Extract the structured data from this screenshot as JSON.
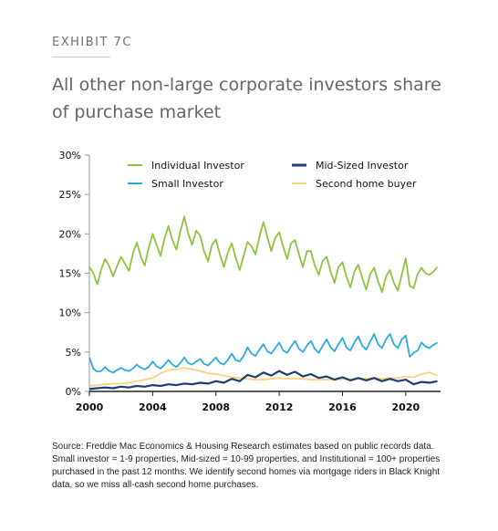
{
  "header": {
    "exhibit": "EXHIBIT 7C",
    "title": "All other non-large corporate investors share of purchase market"
  },
  "source": "Source: Freddie Mac Economics & Housing Research estimates based on public records data. Small investor = 1-9 properties, Mid-sized = 10-99 properties, and Institutional = 100+ properties purchased in the past 12 months. We identify second homes via mortgage riders in Black Knight data, so we miss all-cash second home purchases.",
  "colors": {
    "individual": "#8cc63f",
    "small": "#29abe2",
    "mid": "#1f3e74",
    "second": "#fbd17a",
    "axis": "#222222",
    "grid": "#9a9a9a"
  },
  "chart_data": {
    "type": "line",
    "xlim": [
      2000,
      2022.2
    ],
    "ylim": [
      0,
      30
    ],
    "x_ticks": [
      2000,
      2004,
      2008,
      2012,
      2016,
      2020
    ],
    "x_tick_labels": [
      "2000",
      "2004",
      "2008",
      "2012",
      "2016",
      "2020"
    ],
    "y_ticks": [
      0,
      5,
      10,
      15,
      20,
      25,
      30
    ],
    "y_tick_labels": [
      "0%",
      "5%",
      "10%",
      "15%",
      "20%",
      "25%",
      "30%"
    ],
    "grid": false,
    "legend_placement": "top",
    "series": [
      {
        "name": "Individual Investor",
        "color_key": "individual",
        "x": [
          2000.0,
          2000.25,
          2000.5,
          2000.75,
          2001.0,
          2001.25,
          2001.5,
          2001.75,
          2002.0,
          2002.25,
          2002.5,
          2002.75,
          2003.0,
          2003.25,
          2003.5,
          2003.75,
          2004.0,
          2004.25,
          2004.5,
          2004.75,
          2005.0,
          2005.25,
          2005.5,
          2005.75,
          2006.0,
          2006.25,
          2006.5,
          2006.75,
          2007.0,
          2007.25,
          2007.5,
          2007.75,
          2008.0,
          2008.25,
          2008.5,
          2008.75,
          2009.0,
          2009.25,
          2009.5,
          2009.75,
          2010.0,
          2010.25,
          2010.5,
          2010.75,
          2011.0,
          2011.25,
          2011.5,
          2011.75,
          2012.0,
          2012.25,
          2012.5,
          2012.75,
          2013.0,
          2013.25,
          2013.5,
          2013.75,
          2014.0,
          2014.25,
          2014.5,
          2014.75,
          2015.0,
          2015.25,
          2015.5,
          2015.75,
          2016.0,
          2016.25,
          2016.5,
          2016.75,
          2017.0,
          2017.25,
          2017.5,
          2017.75,
          2018.0,
          2018.25,
          2018.5,
          2018.75,
          2019.0,
          2019.25,
          2019.5,
          2019.75,
          2020.0,
          2020.25,
          2020.5,
          2020.75,
          2021.0,
          2021.25,
          2021.5,
          2021.75,
          2022.0
        ],
        "y": [
          15.8,
          15.0,
          13.6,
          15.5,
          16.8,
          15.9,
          14.6,
          15.9,
          17.1,
          16.2,
          15.3,
          17.5,
          18.9,
          17.1,
          16.0,
          18.2,
          20.0,
          18.6,
          17.2,
          19.4,
          21.0,
          19.2,
          18.0,
          20.3,
          22.2,
          20.0,
          18.6,
          20.4,
          19.8,
          17.8,
          16.5,
          18.6,
          19.3,
          17.4,
          15.8,
          17.6,
          18.8,
          17.0,
          15.4,
          17.2,
          19.0,
          18.4,
          17.4,
          19.6,
          21.5,
          19.6,
          17.8,
          19.5,
          20.2,
          18.4,
          16.8,
          18.8,
          19.2,
          17.4,
          15.8,
          17.8,
          17.8,
          16.0,
          14.8,
          16.6,
          17.1,
          15.2,
          13.8,
          15.8,
          16.4,
          14.6,
          13.2,
          15.2,
          16.1,
          14.4,
          12.9,
          14.9,
          15.7,
          14.0,
          12.6,
          14.6,
          15.4,
          13.8,
          12.8,
          14.8,
          16.9,
          13.4,
          13.1,
          14.9,
          15.7,
          15.0,
          14.8,
          15.2,
          15.8
        ]
      },
      {
        "name": "Small Investor",
        "color_key": "small",
        "x": [
          2000.0,
          2000.25,
          2000.5,
          2000.75,
          2001.0,
          2001.25,
          2001.5,
          2001.75,
          2002.0,
          2002.25,
          2002.5,
          2002.75,
          2003.0,
          2003.25,
          2003.5,
          2003.75,
          2004.0,
          2004.25,
          2004.5,
          2004.75,
          2005.0,
          2005.25,
          2005.5,
          2005.75,
          2006.0,
          2006.25,
          2006.5,
          2006.75,
          2007.0,
          2007.25,
          2007.5,
          2007.75,
          2008.0,
          2008.25,
          2008.5,
          2008.75,
          2009.0,
          2009.25,
          2009.5,
          2009.75,
          2010.0,
          2010.25,
          2010.5,
          2010.75,
          2011.0,
          2011.25,
          2011.5,
          2011.75,
          2012.0,
          2012.25,
          2012.5,
          2012.75,
          2013.0,
          2013.25,
          2013.5,
          2013.75,
          2014.0,
          2014.25,
          2014.5,
          2014.75,
          2015.0,
          2015.25,
          2015.5,
          2015.75,
          2016.0,
          2016.25,
          2016.5,
          2016.75,
          2017.0,
          2017.25,
          2017.5,
          2017.75,
          2018.0,
          2018.25,
          2018.5,
          2018.75,
          2019.0,
          2019.25,
          2019.5,
          2019.75,
          2020.0,
          2020.25,
          2020.5,
          2020.75,
          2021.0,
          2021.25,
          2021.5,
          2021.75,
          2022.0
        ],
        "y": [
          4.3,
          2.9,
          2.5,
          2.6,
          3.1,
          2.6,
          2.4,
          2.7,
          3.0,
          2.7,
          2.6,
          2.9,
          3.4,
          3.0,
          2.8,
          3.1,
          3.8,
          3.2,
          2.9,
          3.4,
          4.0,
          3.4,
          3.1,
          3.6,
          4.3,
          3.6,
          3.4,
          3.8,
          4.1,
          3.5,
          3.3,
          3.8,
          4.3,
          3.6,
          3.4,
          4.0,
          4.8,
          4.0,
          3.8,
          4.5,
          5.6,
          4.8,
          4.5,
          5.3,
          6.0,
          5.1,
          4.8,
          5.5,
          6.2,
          5.2,
          4.9,
          5.7,
          6.4,
          5.4,
          5.0,
          5.8,
          6.4,
          5.4,
          4.9,
          5.8,
          6.6,
          5.6,
          5.1,
          6.0,
          6.8,
          5.6,
          5.2,
          6.2,
          7.0,
          5.8,
          5.3,
          6.3,
          7.3,
          6.0,
          5.5,
          6.6,
          7.3,
          6.0,
          5.5,
          6.6,
          7.1,
          4.4,
          4.9,
          5.2,
          6.2,
          5.7,
          5.5,
          5.9,
          6.2
        ]
      },
      {
        "name": "Mid-Sized Investor",
        "color_key": "mid",
        "x": [
          2000.0,
          2000.5,
          2001.0,
          2001.5,
          2002.0,
          2002.5,
          2003.0,
          2003.5,
          2004.0,
          2004.5,
          2005.0,
          2005.5,
          2006.0,
          2006.5,
          2007.0,
          2007.5,
          2008.0,
          2008.5,
          2009.0,
          2009.5,
          2010.0,
          2010.5,
          2011.0,
          2011.5,
          2012.0,
          2012.5,
          2013.0,
          2013.5,
          2014.0,
          2014.5,
          2015.0,
          2015.5,
          2016.0,
          2016.5,
          2017.0,
          2017.5,
          2018.0,
          2018.5,
          2019.0,
          2019.5,
          2020.0,
          2020.5,
          2021.0,
          2021.5,
          2022.0
        ],
        "y": [
          0.3,
          0.4,
          0.5,
          0.4,
          0.6,
          0.5,
          0.7,
          0.6,
          0.8,
          0.7,
          0.9,
          0.8,
          1.0,
          0.9,
          1.1,
          1.0,
          1.3,
          1.1,
          1.6,
          1.3,
          2.1,
          1.8,
          2.4,
          2.0,
          2.6,
          2.1,
          2.5,
          1.9,
          2.2,
          1.7,
          1.9,
          1.5,
          1.8,
          1.4,
          1.7,
          1.4,
          1.7,
          1.3,
          1.6,
          1.3,
          1.5,
          0.9,
          1.2,
          1.1,
          1.3
        ]
      },
      {
        "name": "Second home buyer",
        "color_key": "second",
        "x": [
          2000.0,
          2000.5,
          2001.0,
          2001.5,
          2002.0,
          2002.5,
          2003.0,
          2003.5,
          2004.0,
          2004.5,
          2005.0,
          2005.5,
          2006.0,
          2006.5,
          2007.0,
          2007.5,
          2008.0,
          2008.5,
          2009.0,
          2009.5,
          2010.0,
          2010.5,
          2011.0,
          2011.5,
          2012.0,
          2012.5,
          2013.0,
          2013.5,
          2014.0,
          2014.5,
          2015.0,
          2015.5,
          2016.0,
          2016.5,
          2017.0,
          2017.5,
          2018.0,
          2018.5,
          2019.0,
          2019.5,
          2020.0,
          2020.5,
          2021.0,
          2021.5,
          2022.0
        ],
        "y": [
          0.7,
          0.8,
          0.9,
          1.0,
          1.0,
          1.1,
          1.3,
          1.5,
          1.7,
          2.3,
          2.7,
          2.8,
          3.0,
          2.8,
          2.6,
          2.3,
          2.2,
          2.0,
          1.8,
          1.7,
          1.6,
          1.5,
          1.5,
          1.6,
          1.7,
          1.6,
          1.6,
          1.6,
          1.5,
          1.5,
          1.5,
          1.5,
          1.6,
          1.5,
          1.6,
          1.6,
          1.7,
          1.6,
          1.7,
          1.7,
          1.9,
          1.8,
          2.2,
          2.4,
          2.0
        ]
      }
    ]
  }
}
